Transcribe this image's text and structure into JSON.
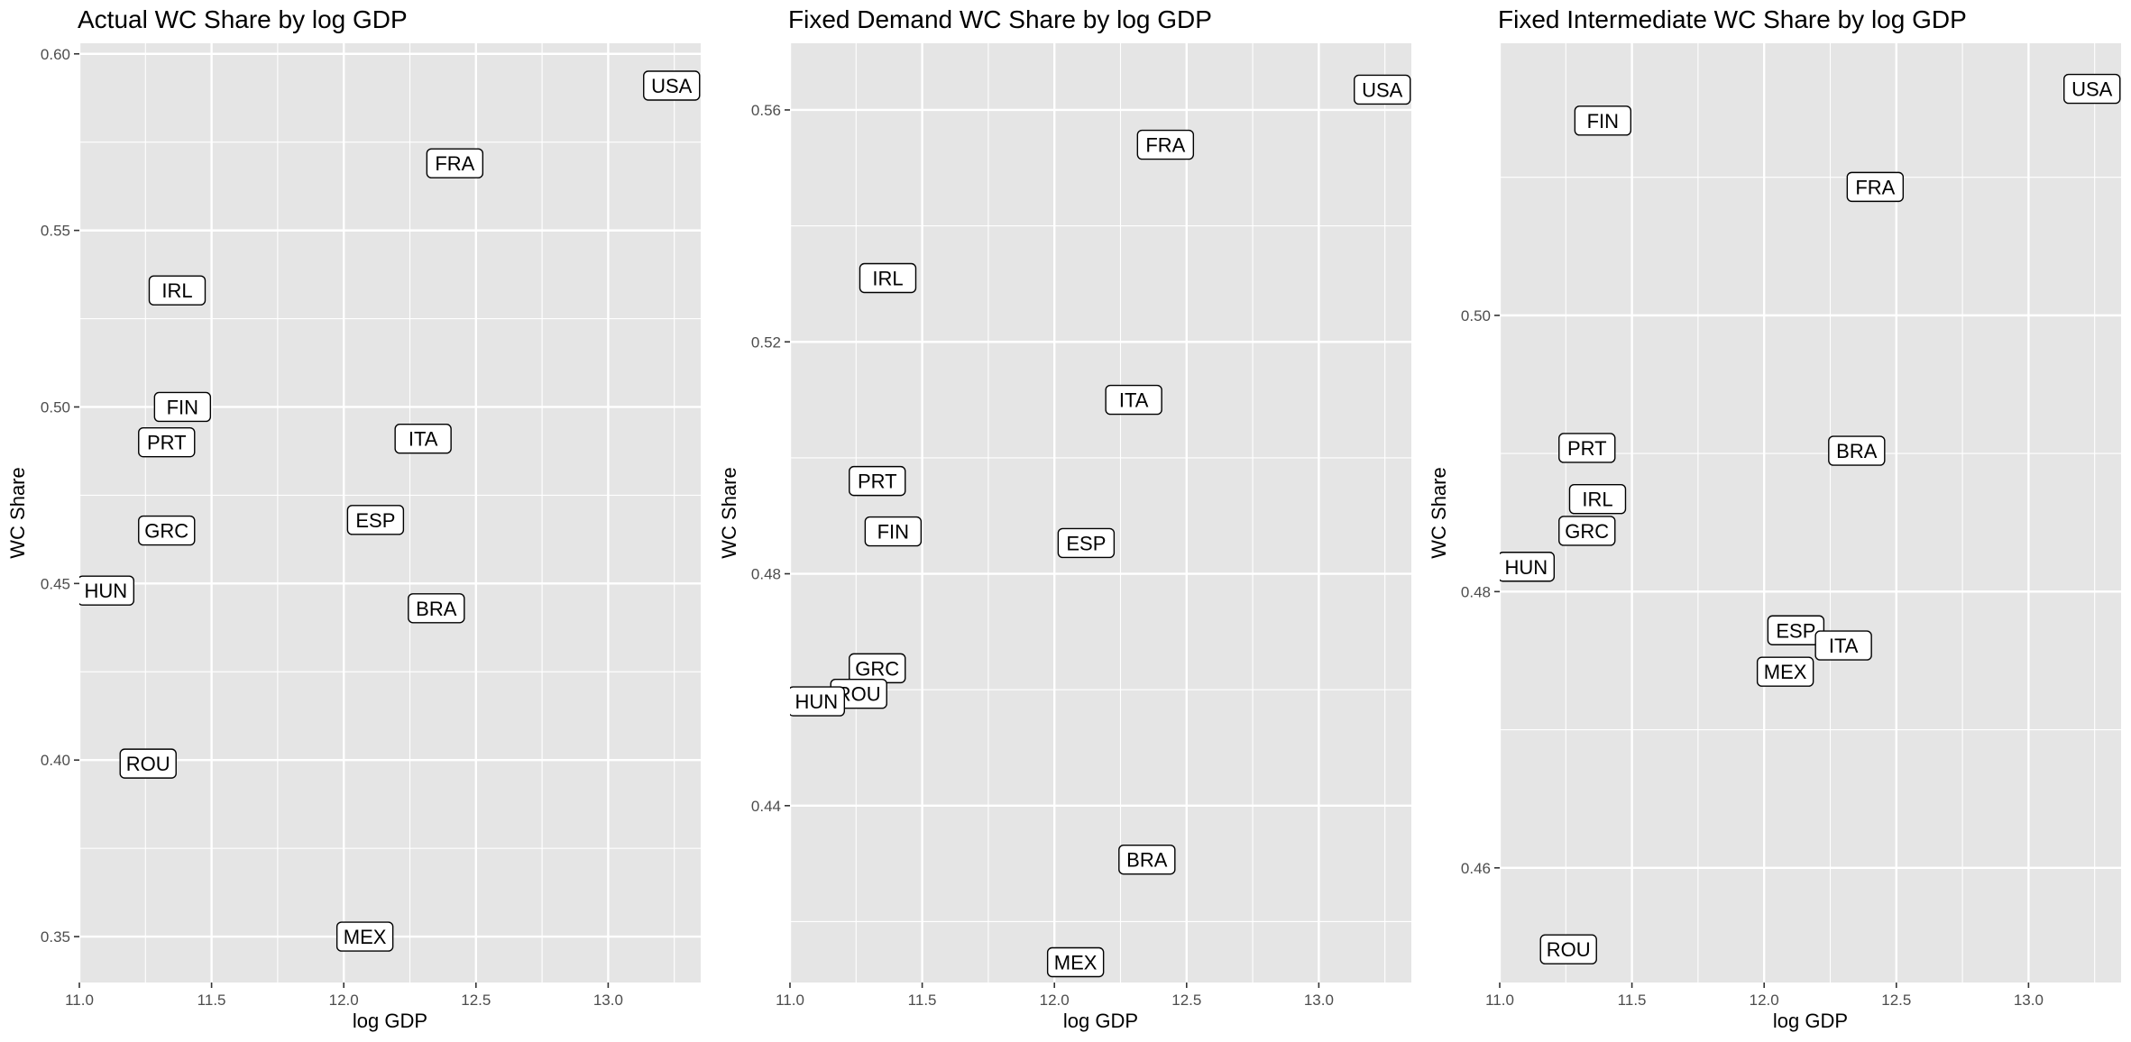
{
  "colors": {
    "panel_background": "#e5e5e5",
    "grid": "#ffffff",
    "label_fill": "#ffffff",
    "label_border": "#000000",
    "tick_text": "#4d4d4d"
  },
  "chart_data": [
    {
      "type": "scatter",
      "title": "Actual WC Share by log GDP",
      "xlabel": "log GDP",
      "ylabel": "WC Share",
      "xlim": [
        11.0,
        13.35
      ],
      "ylim": [
        0.337,
        0.603
      ],
      "xticks": [
        11.0,
        11.5,
        12.0,
        12.5,
        13.0
      ],
      "xtick_labels": [
        "11.0",
        "11.5",
        "12.0",
        "12.5",
        "13.0"
      ],
      "yticks": [
        0.35,
        0.4,
        0.45,
        0.5,
        0.55,
        0.6
      ],
      "ytick_labels": [
        "0.35",
        "0.40",
        "0.45",
        "0.50",
        "0.55",
        "0.60"
      ],
      "grid": true,
      "points": [
        {
          "label": "USA",
          "x": 13.24,
          "y": 0.591
        },
        {
          "label": "FRA",
          "x": 12.42,
          "y": 0.569
        },
        {
          "label": "IRL",
          "x": 11.37,
          "y": 0.533
        },
        {
          "label": "FIN",
          "x": 11.39,
          "y": 0.5
        },
        {
          "label": "PRT",
          "x": 11.33,
          "y": 0.49
        },
        {
          "label": "ITA",
          "x": 12.3,
          "y": 0.491
        },
        {
          "label": "ESP",
          "x": 12.12,
          "y": 0.468
        },
        {
          "label": "GRC",
          "x": 11.33,
          "y": 0.465
        },
        {
          "label": "HUN",
          "x": 11.1,
          "y": 0.448
        },
        {
          "label": "BRA",
          "x": 12.35,
          "y": 0.443
        },
        {
          "label": "ROU",
          "x": 11.26,
          "y": 0.399
        },
        {
          "label": "MEX",
          "x": 12.08,
          "y": 0.35
        }
      ]
    },
    {
      "type": "scatter",
      "title": "Fixed Demand WC Share by log GDP",
      "xlabel": "log GDP",
      "ylabel": "WC Share",
      "xlim": [
        11.0,
        13.35
      ],
      "ylim": [
        0.4095,
        0.5715
      ],
      "xticks": [
        11.0,
        11.5,
        12.0,
        12.5,
        13.0
      ],
      "xtick_labels": [
        "11.0",
        "11.5",
        "12.0",
        "12.5",
        "13.0"
      ],
      "yticks": [
        0.44,
        0.48,
        0.52,
        0.56
      ],
      "ytick_labels": [
        "0.44",
        "0.48",
        "0.52",
        "0.56"
      ],
      "grid": true,
      "points": [
        {
          "label": "USA",
          "x": 13.24,
          "y": 0.5635
        },
        {
          "label": "FRA",
          "x": 12.42,
          "y": 0.554
        },
        {
          "label": "IRL",
          "x": 11.37,
          "y": 0.531
        },
        {
          "label": "ITA",
          "x": 12.3,
          "y": 0.51
        },
        {
          "label": "PRT",
          "x": 11.33,
          "y": 0.496
        },
        {
          "label": "FIN",
          "x": 11.39,
          "y": 0.4873
        },
        {
          "label": "ESP",
          "x": 12.12,
          "y": 0.4853
        },
        {
          "label": "GRC",
          "x": 11.33,
          "y": 0.4637
        },
        {
          "label": "ROU",
          "x": 11.26,
          "y": 0.4593
        },
        {
          "label": "HUN",
          "x": 11.1,
          "y": 0.458
        },
        {
          "label": "BRA",
          "x": 12.35,
          "y": 0.4307
        },
        {
          "label": "MEX",
          "x": 12.08,
          "y": 0.413
        }
      ]
    },
    {
      "type": "scatter",
      "title": "Fixed Intermediate WC Share by log GDP",
      "xlabel": "log GDP",
      "ylabel": "WC Share",
      "xlim": [
        11.0,
        13.35
      ],
      "ylim": [
        0.4517,
        0.5197
      ],
      "xticks": [
        11.0,
        11.5,
        12.0,
        12.5,
        13.0
      ],
      "xtick_labels": [
        "11.0",
        "11.5",
        "12.0",
        "12.5",
        "13.0"
      ],
      "yticks": [
        0.46,
        0.48,
        0.5
      ],
      "ytick_labels": [
        "0.46",
        "0.48",
        "0.50"
      ],
      "grid": true,
      "points": [
        {
          "label": "USA",
          "x": 13.24,
          "y": 0.5164
        },
        {
          "label": "FIN",
          "x": 11.39,
          "y": 0.5141
        },
        {
          "label": "FRA",
          "x": 12.42,
          "y": 0.5093
        },
        {
          "label": "PRT",
          "x": 11.33,
          "y": 0.4904
        },
        {
          "label": "BRA",
          "x": 12.35,
          "y": 0.4902
        },
        {
          "label": "IRL",
          "x": 11.37,
          "y": 0.4867
        },
        {
          "label": "GRC",
          "x": 11.33,
          "y": 0.4844
        },
        {
          "label": "HUN",
          "x": 11.1,
          "y": 0.4818
        },
        {
          "label": "ESP",
          "x": 12.12,
          "y": 0.4772
        },
        {
          "label": "ITA",
          "x": 12.3,
          "y": 0.4761
        },
        {
          "label": "MEX",
          "x": 12.08,
          "y": 0.4742
        },
        {
          "label": "ROU",
          "x": 11.26,
          "y": 0.4541
        }
      ]
    }
  ]
}
